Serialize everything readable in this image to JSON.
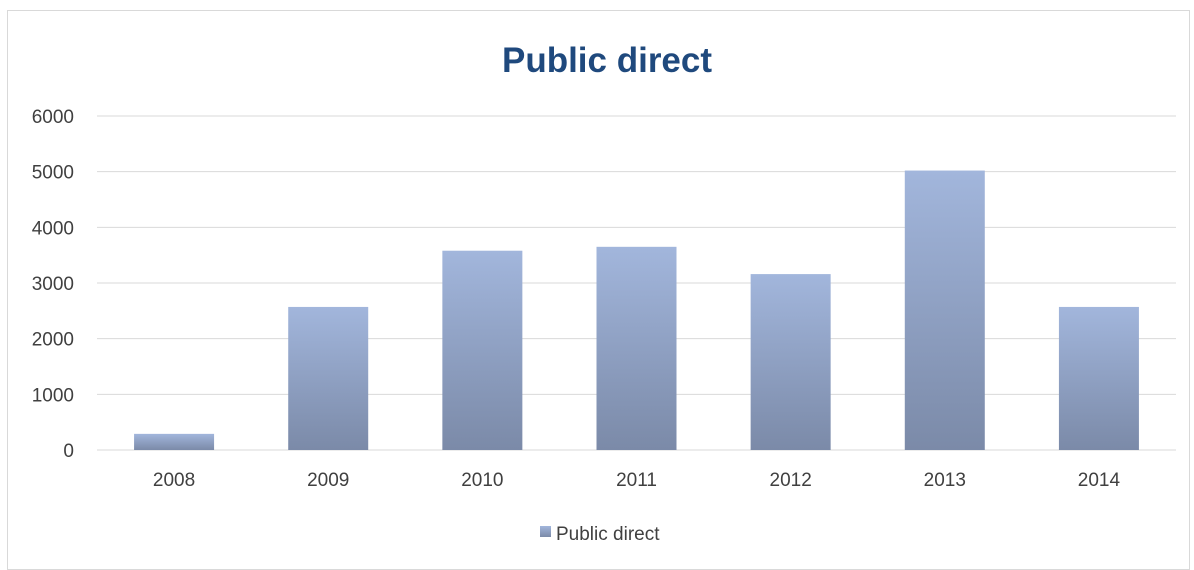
{
  "chart_data": {
    "type": "bar",
    "title": "Public direct",
    "categories": [
      "2008",
      "2009",
      "2010",
      "2011",
      "2012",
      "2013",
      "2014"
    ],
    "series": [
      {
        "name": "Public direct",
        "values": [
          290,
          2570,
          3580,
          3650,
          3160,
          5020,
          2570
        ]
      }
    ],
    "xlabel": "",
    "ylabel": "",
    "ylim": [
      0,
      6000
    ],
    "yticks": [
      0,
      1000,
      2000,
      3000,
      4000,
      5000,
      6000
    ],
    "grid": true,
    "legend_position": "bottom",
    "colors": {
      "bar_top": "#a2b6dc",
      "bar_bottom": "#7b8aa8",
      "grid": "#d9d9d9",
      "title": "#1f497d"
    }
  }
}
